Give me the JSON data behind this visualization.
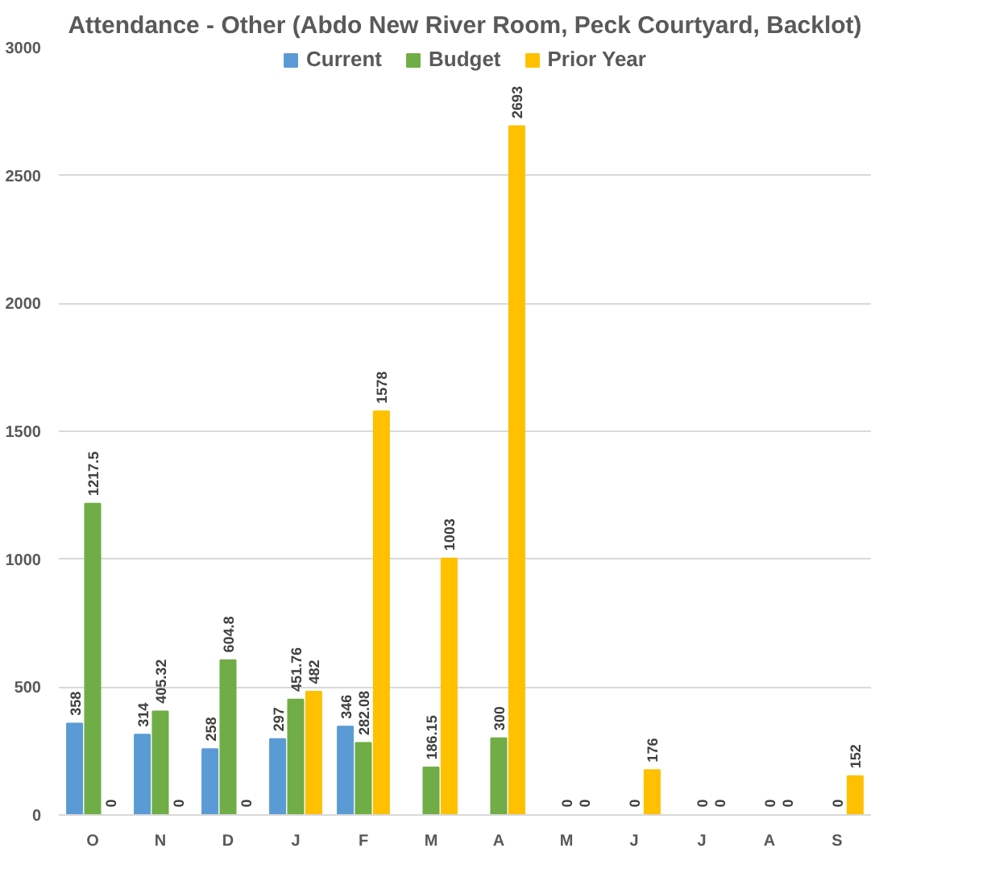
{
  "chart_data": {
    "type": "bar",
    "title": "Attendance - Other (Abdo New River Room, Peck Courtyard, Backlot)",
    "categories": [
      "O",
      "N",
      "D",
      "J",
      "F",
      "M",
      "A",
      "M",
      "J",
      "J",
      "A",
      "S"
    ],
    "series": [
      {
        "name": "Current",
        "color": "#5b9bd5",
        "values": [
          358,
          314,
          258,
          297,
          346,
          null,
          null,
          null,
          null,
          null,
          null,
          null
        ]
      },
      {
        "name": "Budget",
        "color": "#70ad47",
        "values": [
          1217.5,
          405.32,
          604.8,
          451.76,
          282.08,
          186.15,
          300,
          0,
          0,
          0,
          0,
          0
        ]
      },
      {
        "name": "Prior Year",
        "color": "#ffc000",
        "values": [
          0,
          0,
          0,
          482,
          1578,
          1003,
          2693,
          0,
          176,
          0,
          0,
          152
        ]
      }
    ],
    "ylim": [
      0,
      3000
    ],
    "yticks": [
      0,
      500,
      1000,
      1500,
      2000,
      2500,
      3000
    ],
    "grid": "y",
    "legend": "top",
    "data_labels": true
  }
}
